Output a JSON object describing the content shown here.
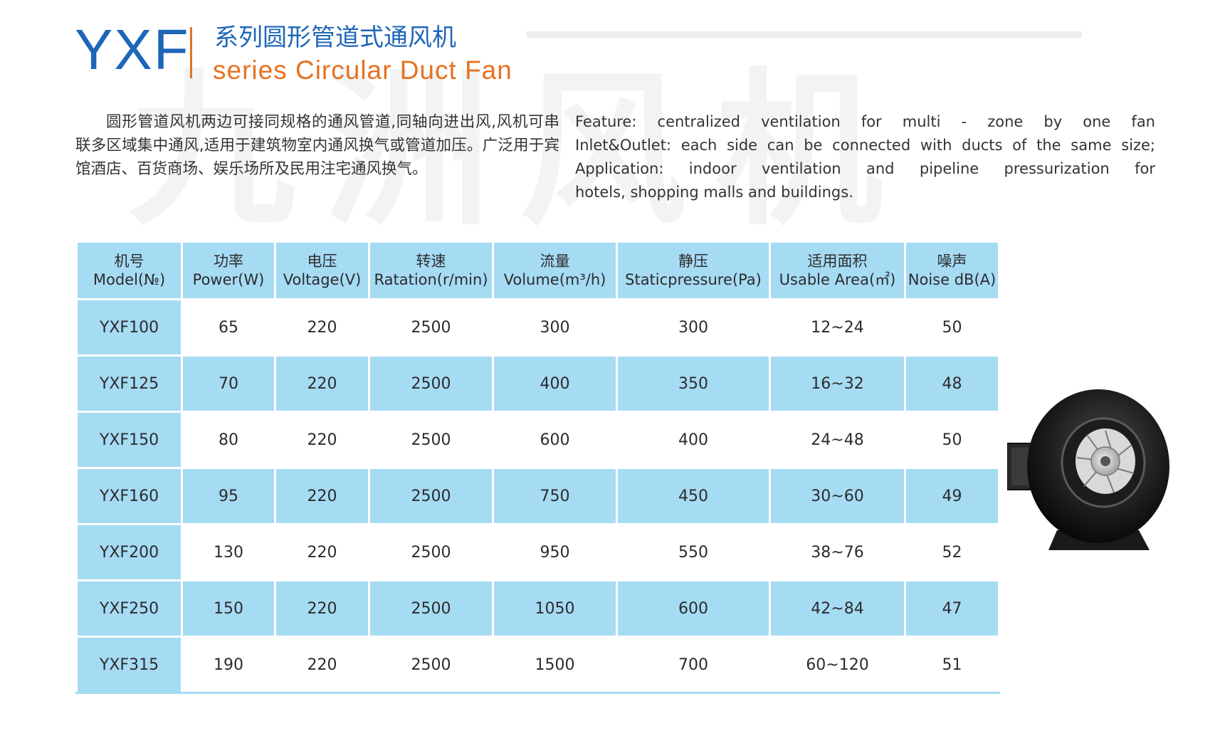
{
  "watermark": "九洲风机",
  "header": {
    "brand": "YXF",
    "title_cn": "系列圆形管道式通风机",
    "title_en": "series Circular Duct Fan"
  },
  "description": {
    "cn": "圆形管道风机两边可接同规格的通风管道,同轴向进出风,风机可串联多区域集中通风,适用于建筑物室内通风换气或管道加压。广泛用于宾馆酒店、百货商场、娱乐场所及民用注宅通风换气。",
    "en": [
      "Feature: centralized ventilation for multi - zone by one fan",
      "Inlet&Outlet: each side can be connected with ducts of the same size;",
      "Application: indoor ventilation and pipeline pressurization for",
      "hotels, shopping malls and buildings."
    ]
  },
  "table": {
    "headers": [
      {
        "cn": "机号",
        "en": "Model(№)"
      },
      {
        "cn": "功率",
        "en": "Power(W)"
      },
      {
        "cn": "电压",
        "en": "Voltage(V)"
      },
      {
        "cn": "转速",
        "en": "Ratation(r/min)"
      },
      {
        "cn": "流量",
        "en": "Volume(m³/h)"
      },
      {
        "cn": "静压",
        "en": "Staticpressure(Pa)"
      },
      {
        "cn": "适用面积",
        "en": "Usable Area(㎡)"
      },
      {
        "cn": "噪声",
        "en": "Noise dB(A)"
      }
    ],
    "rows": [
      [
        "YXF100",
        "65",
        "220",
        "2500",
        "300",
        "300",
        "12~24",
        "50"
      ],
      [
        "YXF125",
        "70",
        "220",
        "2500",
        "400",
        "350",
        "16~32",
        "48"
      ],
      [
        "YXF150",
        "80",
        "220",
        "2500",
        "600",
        "400",
        "24~48",
        "50"
      ],
      [
        "YXF160",
        "95",
        "220",
        "2500",
        "750",
        "450",
        "30~60",
        "49"
      ],
      [
        "YXF200",
        "130",
        "220",
        "2500",
        "950",
        "550",
        "38~76",
        "52"
      ],
      [
        "YXF250",
        "150",
        "220",
        "2500",
        "1050",
        "600",
        "42~84",
        "47"
      ],
      [
        "YXF315",
        "190",
        "220",
        "2500",
        "1500",
        "700",
        "60~120",
        "51"
      ]
    ]
  },
  "colors": {
    "brand_blue": "#1e66b8",
    "accent_orange": "#e8711f",
    "table_blue": "#a6dbf4"
  },
  "image": {
    "icon": "circular-duct-fan-icon"
  }
}
